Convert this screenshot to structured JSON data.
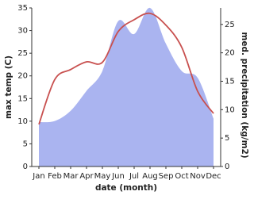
{
  "chart_data": {
    "type": "line-area",
    "xlabel": "date (month)",
    "ylabel": "max temp (C)",
    "y2label": "med. precipitation (kg/m2)",
    "categories": [
      "Jan",
      "Feb",
      "Mar",
      "Apr",
      "May",
      "Jun",
      "Jul",
      "Aug",
      "Sep",
      "Oct",
      "Nov",
      "Dec"
    ],
    "series": [
      {
        "name": "max temp",
        "color": "#c8504f",
        "axis": "y",
        "kind": "line",
        "values": [
          9.3,
          19.2,
          21.4,
          23.1,
          23.0,
          29.8,
          32.4,
          33.8,
          31.2,
          26.3,
          16.6,
          11.7
        ]
      },
      {
        "name": "med. precipitation",
        "color": "#aab4f0",
        "axis": "y2",
        "kind": "area",
        "values": [
          7.8,
          8.0,
          9.8,
          13.3,
          16.8,
          25.6,
          23.3,
          27.9,
          21.6,
          16.8,
          15.6,
          8.4
        ]
      }
    ],
    "ylim": [
      0,
      35
    ],
    "yticks": [
      0,
      5,
      10,
      15,
      20,
      25,
      30,
      35
    ],
    "y2lim": [
      0,
      27.9
    ],
    "y2ticks": [
      0,
      5,
      10,
      15,
      20,
      25
    ]
  }
}
